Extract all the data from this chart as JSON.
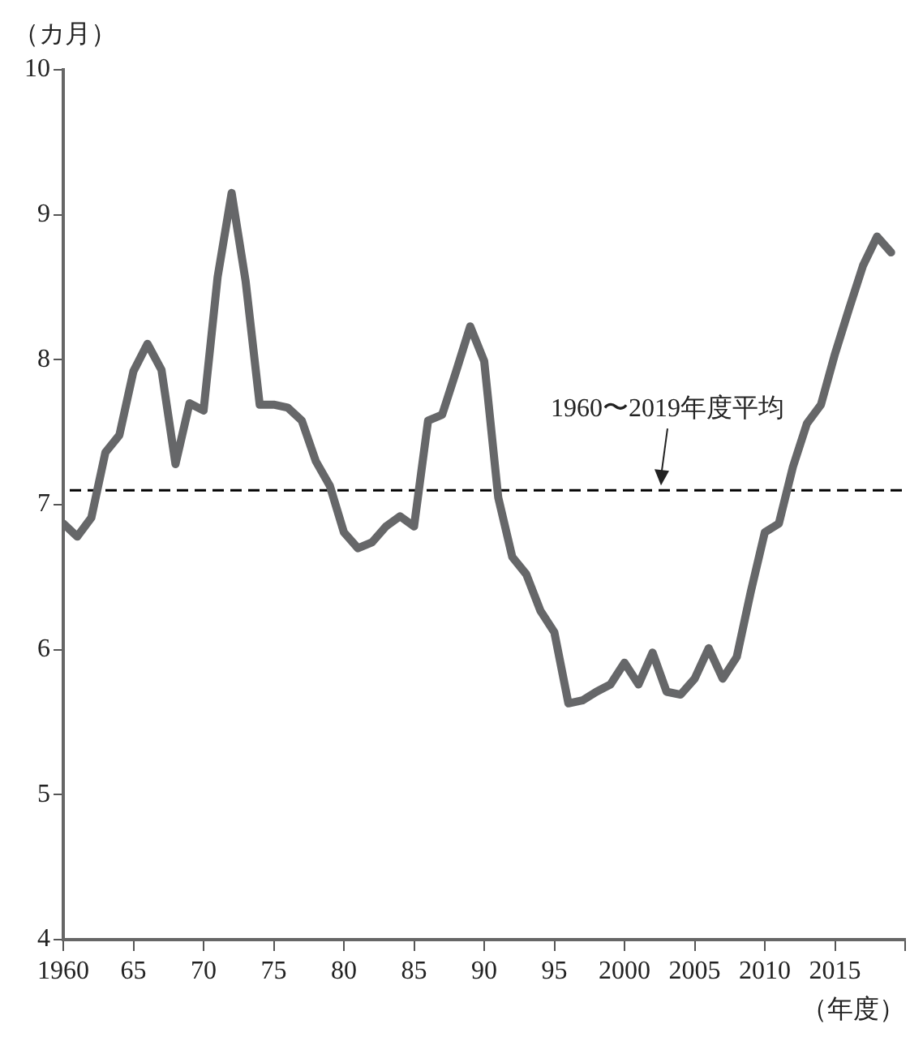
{
  "chart_data": {
    "type": "line",
    "ylabel": "（カ月）",
    "xlabel": "（年度）",
    "x": [
      1960,
      1961,
      1962,
      1963,
      1964,
      1965,
      1966,
      1967,
      1968,
      1969,
      1970,
      1971,
      1972,
      1973,
      1974,
      1975,
      1976,
      1977,
      1978,
      1979,
      1980,
      1981,
      1982,
      1983,
      1984,
      1985,
      1986,
      1987,
      1988,
      1989,
      1990,
      1991,
      1992,
      1993,
      1994,
      1995,
      1996,
      1997,
      1998,
      1999,
      2000,
      2001,
      2002,
      2003,
      2004,
      2005,
      2006,
      2007,
      2008,
      2009,
      2010,
      2011,
      2012,
      2013,
      2014,
      2015,
      2016,
      2017,
      2018,
      2019
    ],
    "series": [
      {
        "color": "#666769",
        "values": [
          6.87,
          6.78,
          6.91,
          7.36,
          7.48,
          7.92,
          8.11,
          7.93,
          7.28,
          7.7,
          7.65,
          8.57,
          9.15,
          8.54,
          7.69,
          7.69,
          7.67,
          7.58,
          7.3,
          7.13,
          6.81,
          6.7,
          6.74,
          6.85,
          6.92,
          6.85,
          7.58,
          7.62,
          7.92,
          8.23,
          7.99,
          7.05,
          6.64,
          6.52,
          6.27,
          6.12,
          5.63,
          5.65,
          5.71,
          5.76,
          5.91,
          5.76,
          5.98,
          5.71,
          5.69,
          5.8,
          6.01,
          5.8,
          5.95,
          6.4,
          6.81,
          6.87,
          7.26,
          7.56,
          7.69,
          8.04,
          8.35,
          8.65,
          8.85,
          8.74
        ]
      }
    ],
    "xlim": [
      1960,
      2020
    ],
    "xticks": [
      1960,
      {
        "value": 1965,
        "label": "65"
      },
      {
        "value": 1970,
        "label": "70"
      },
      {
        "value": 1975,
        "label": "75"
      },
      {
        "value": 1980,
        "label": "80"
      },
      {
        "value": 1985,
        "label": "85"
      },
      {
        "value": 1990,
        "label": "90"
      },
      {
        "value": 1995,
        "label": "95"
      },
      2000,
      2005,
      2010,
      2015,
      {
        "value": 2020,
        "label": null
      }
    ],
    "ylim": [
      4,
      10
    ],
    "yticks": [
      4,
      5,
      6,
      7,
      8,
      9,
      10
    ],
    "ref_lines": [
      {
        "axis": "y",
        "value": 7.1,
        "label": "1960〜2019年度平均",
        "color": "#000000",
        "line_style": "dashed"
      }
    ],
    "grid": false,
    "legend": false,
    "marker": "none",
    "line_style": "solid"
  }
}
